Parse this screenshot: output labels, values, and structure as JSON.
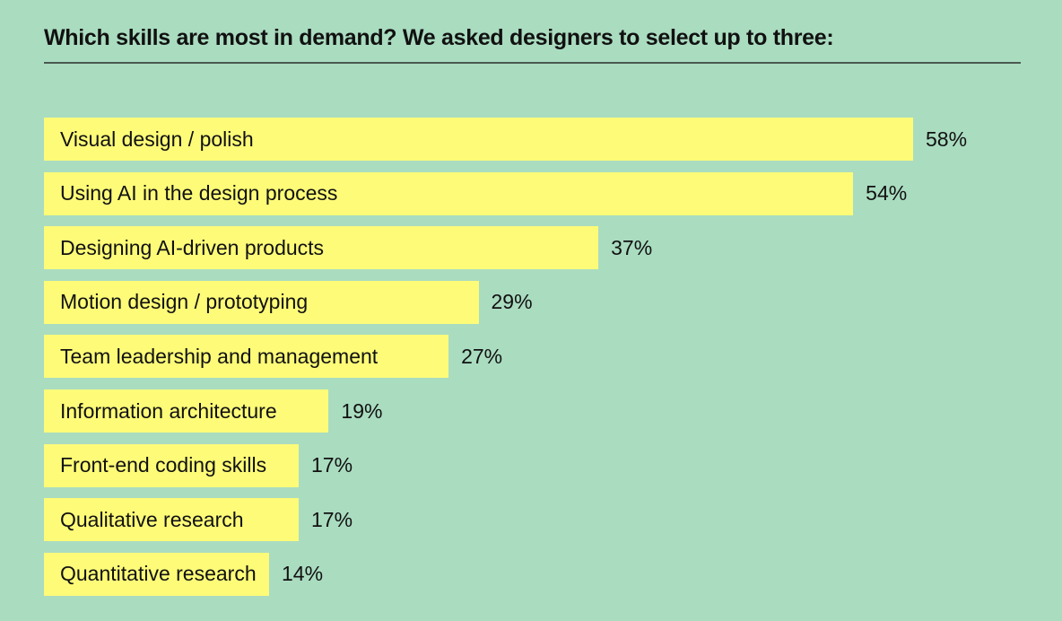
{
  "chart_data": {
    "type": "bar",
    "orientation": "horizontal",
    "title": "Which skills are most in demand? We asked designers to select up to three:",
    "categories": [
      "Visual design / polish",
      "Using AI in the design process",
      "Designing AI-driven products",
      "Motion design / prototyping",
      "Team leadership and management",
      "Information architecture",
      "Front-end coding skills",
      "Qualitative research",
      "Quantitative research"
    ],
    "values": [
      58,
      54,
      37,
      29,
      27,
      19,
      17,
      17,
      14
    ],
    "value_labels": [
      "58%",
      "54%",
      "37%",
      "29%",
      "27%",
      "19%",
      "17%",
      "17%",
      "14%"
    ],
    "unit": "%",
    "xlim": [
      0,
      58
    ],
    "colors": {
      "background": "#aadcc0",
      "bar": "#fdfb78"
    }
  }
}
